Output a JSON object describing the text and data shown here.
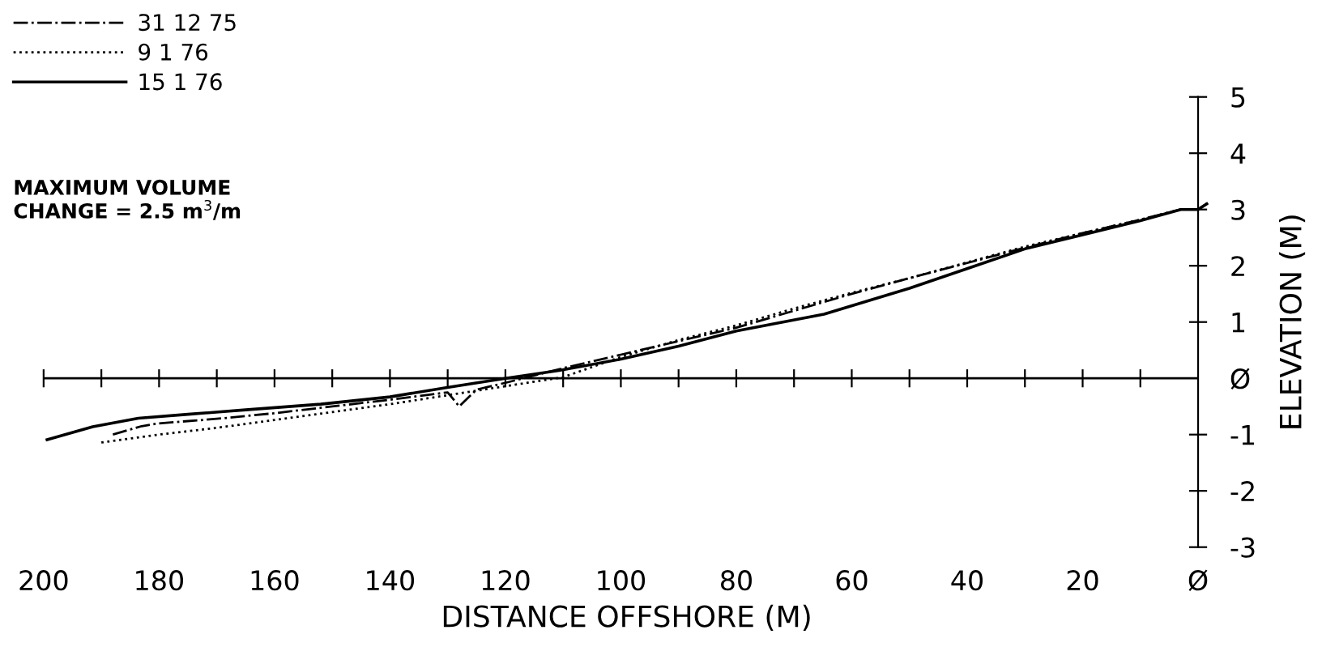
{
  "chart_data": {
    "type": "line",
    "xlabel": "DISTANCE OFFSHORE (M)",
    "ylabel": "ELEVATION (M)",
    "annotations": [
      "MAXIMUM VOLUME\nCHANGE = 2.5 m$^{3}$/m"
    ],
    "xlim": [
      200,
      -2
    ],
    "ylim": [
      -3,
      5
    ],
    "ref_lines": [
      {
        "axis": "y",
        "value": 0,
        "color": "#000000"
      }
    ],
    "xticks": [
      200,
      {
        "value": 190,
        "label": null
      },
      180,
      {
        "value": 170,
        "label": null
      },
      160,
      {
        "value": 150,
        "label": null
      },
      140,
      {
        "value": 130,
        "label": null
      },
      120,
      {
        "value": 110,
        "label": null
      },
      100,
      {
        "value": 90,
        "label": null
      },
      80,
      {
        "value": 70,
        "label": null
      },
      60,
      {
        "value": 50,
        "label": null
      },
      40,
      {
        "value": 30,
        "label": null
      },
      20,
      {
        "value": 10,
        "label": null
      },
      {
        "value": 0,
        "label": "Ø"
      }
    ],
    "yticks": [
      {
        "value": -3,
        "label": "-3"
      },
      {
        "value": -2,
        "label": "-2"
      },
      {
        "value": -1,
        "label": "-1"
      },
      {
        "value": 0,
        "label": "Ø"
      },
      1,
      2,
      3,
      4,
      5
    ],
    "grid": false,
    "legend": "top left",
    "series": [
      {
        "name": "31 12 75",
        "color": "#000000",
        "line_style": "dashdot",
        "x": [
          188,
          183,
          180,
          170,
          160,
          150,
          140,
          130,
          128,
          125,
          120,
          115,
          110,
          100,
          90,
          80,
          70,
          60,
          50,
          40,
          30,
          20,
          10,
          3,
          0,
          -1.5
        ],
        "values": [
          -1.0,
          -0.85,
          -0.8,
          -0.72,
          -0.62,
          -0.5,
          -0.38,
          -0.25,
          -0.5,
          -0.2,
          -0.08,
          0.05,
          0.18,
          0.42,
          0.66,
          0.9,
          1.2,
          1.5,
          1.78,
          2.05,
          2.32,
          2.58,
          2.82,
          3.0,
          3.0,
          3.1
        ]
      },
      {
        "name": "9 1 76",
        "color": "#000000",
        "line_style": "dotted",
        "x": [
          190,
          180,
          170,
          160,
          150,
          140,
          130,
          120,
          115,
          110,
          100,
          90,
          80,
          70,
          60,
          50,
          40,
          30,
          20,
          10,
          3,
          0,
          -1.5
        ],
        "values": [
          -1.14,
          -1.0,
          -0.88,
          -0.74,
          -0.6,
          -0.46,
          -0.3,
          -0.14,
          -0.06,
          0.02,
          0.38,
          0.68,
          0.94,
          1.24,
          1.52,
          1.78,
          2.06,
          2.34,
          2.58,
          2.82,
          3.0,
          3.0,
          3.1
        ]
      },
      {
        "name": "15 1 76",
        "color": "#000000",
        "line_style": "solid",
        "x": [
          199.4,
          191.5,
          183.6,
          175,
          165,
          152,
          140,
          130.5,
          120,
          110.7,
          100,
          90,
          80,
          64.8,
          50,
          39.4,
          30,
          20,
          10,
          3,
          0,
          -1.5
        ],
        "values": [
          -1.09,
          -0.86,
          -0.71,
          -0.64,
          -0.56,
          -0.46,
          -0.33,
          -0.17,
          0.0,
          0.14,
          0.34,
          0.57,
          0.84,
          1.14,
          1.6,
          1.97,
          2.3,
          2.55,
          2.8,
          3.0,
          3.0,
          3.1
        ]
      }
    ]
  }
}
